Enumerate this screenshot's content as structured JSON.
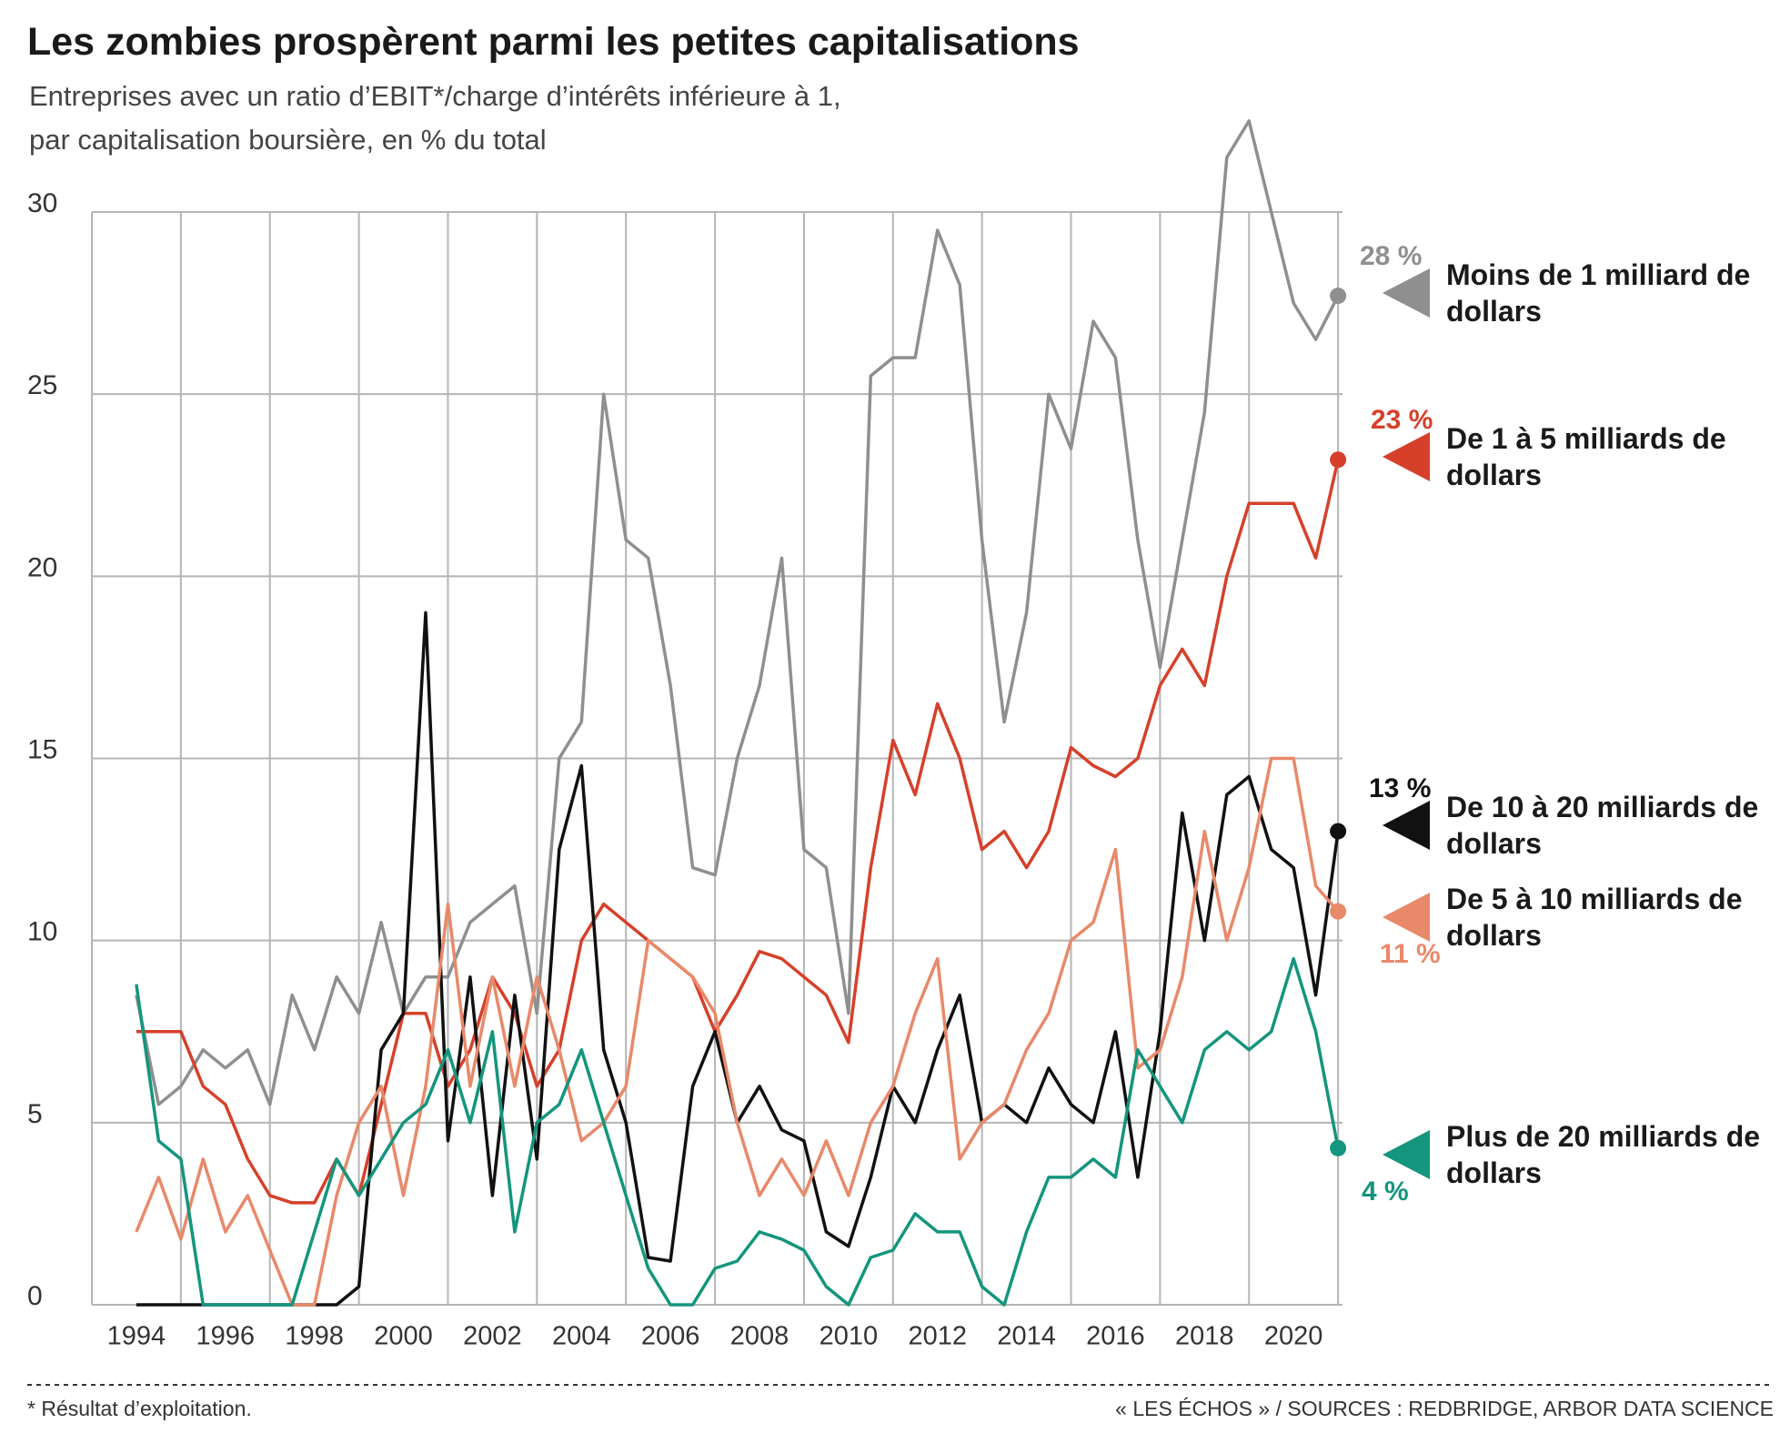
{
  "chart_data": {
    "type": "line",
    "title": "Les zombies prospèrent parmi les petites capitalisations",
    "subtitle": [
      "Entreprises avec un ratio d’EBIT*/charge d’intérêts inférieure à 1,",
      "par capitalisation boursière, en % du total"
    ],
    "footnote": "* Résultat d’exploitation.",
    "source": "« LES ÉCHOS » / SOURCES : REDBRIDGE, ARBOR DATA SCIENCE",
    "x": [
      1994,
      1994.5,
      1995,
      1995.5,
      1996,
      1996.5,
      1997,
      1997.5,
      1998,
      1998.5,
      1999,
      1999.5,
      2000,
      2000.5,
      2001,
      2001.5,
      2002,
      2002.5,
      2003,
      2003.5,
      2004,
      2004.5,
      2005,
      2005.5,
      2006,
      2006.5,
      2007,
      2007.5,
      2008,
      2008.5,
      2009,
      2009.5,
      2010,
      2010.5,
      2011,
      2011.5,
      2012,
      2012.5,
      2013,
      2013.5,
      2014,
      2014.5,
      2015,
      2015.5,
      2016,
      2016.5,
      2017,
      2017.5,
      2018,
      2018.5,
      2019,
      2019.5,
      2020,
      2020.5,
      2021
    ],
    "xlim": [
      1993,
      2021.1
    ],
    "xticks": [
      1994,
      1996,
      1998,
      2000,
      2002,
      2004,
      2006,
      2008,
      2010,
      2012,
      2014,
      2016,
      2018,
      2020
    ],
    "xgrid": [
      1993,
      1995,
      1997,
      1999,
      2001,
      2003,
      2005,
      2007,
      2009,
      2011,
      2013,
      2015,
      2017,
      2019,
      2021
    ],
    "ylim": [
      0,
      30
    ],
    "yticks": [
      0,
      5,
      10,
      15,
      20,
      25,
      30
    ],
    "grid": true,
    "series": [
      {
        "name": "Moins de 1 milliard de dollars",
        "color": "#8f8f8f",
        "end_label": "28 %",
        "values": [
          8.5,
          5.5,
          6,
          7,
          6.5,
          7,
          5.5,
          8.5,
          7,
          9,
          8,
          10.5,
          8,
          9,
          9,
          10.5,
          11,
          11.5,
          8,
          15,
          16,
          25,
          21,
          20.5,
          17,
          12,
          11.8,
          15,
          17,
          20.5,
          12.5,
          12,
          8,
          25.5,
          26,
          26,
          29.5,
          28,
          21,
          16,
          19,
          25,
          23.5,
          27,
          26,
          21,
          17.5,
          21,
          24.5,
          31.5,
          32.5,
          30,
          27.5,
          26.5,
          27.7
        ]
      },
      {
        "name": "De 1 à 5 milliards de dollars",
        "color": "#d6402a",
        "end_label": "23 %",
        "values": [
          7.5,
          7.5,
          7.5,
          6,
          5.5,
          4,
          3,
          2.8,
          2.8,
          4,
          3,
          5.5,
          8,
          8,
          6,
          7,
          9,
          8,
          6,
          7,
          10,
          11,
          10.5,
          10,
          9.5,
          9,
          7.5,
          8.5,
          9.7,
          9.5,
          9,
          8.5,
          7.2,
          12,
          15.5,
          14,
          16.5,
          15,
          12.5,
          13,
          12,
          13,
          15.3,
          14.8,
          14.5,
          15,
          17,
          18,
          17,
          20,
          22,
          22,
          22,
          20.5,
          23.2
        ]
      },
      {
        "name": "De 10 à 20 milliards de dollars",
        "color": "#111111",
        "end_label": "13 %",
        "values": [
          0,
          0,
          0,
          0,
          0,
          0,
          0,
          0,
          0,
          0,
          0.5,
          7,
          8,
          19,
          4.5,
          9,
          3,
          8.5,
          4,
          12.5,
          14.8,
          7,
          5,
          1.3,
          1.2,
          6,
          7.5,
          5,
          6,
          4.8,
          4.5,
          2,
          1.6,
          3.5,
          6,
          5,
          7,
          8.5,
          5,
          5.5,
          5,
          6.5,
          5.5,
          5,
          7.5,
          3.5,
          7.5,
          13.5,
          10,
          14,
          14.5,
          12.5,
          12,
          8.5,
          13
        ]
      },
      {
        "name": "De 5 à 10 milliards de dollars",
        "color": "#e8896a",
        "end_label": "11 %",
        "values": [
          2,
          3.5,
          1.8,
          4,
          2,
          3,
          1.5,
          0,
          0,
          3,
          5,
          6,
          3,
          6,
          11,
          6,
          9,
          6,
          9,
          7,
          4.5,
          5,
          6,
          10,
          9.5,
          9,
          8,
          5,
          3,
          4,
          3,
          4.5,
          3,
          5,
          6,
          8,
          9.5,
          4,
          5,
          5.5,
          7,
          8,
          10,
          10.5,
          12.5,
          6.5,
          7,
          9,
          13,
          10,
          12,
          15,
          15,
          11.5,
          10.8
        ]
      },
      {
        "name": "Plus de 20 milliards de dollars",
        "color": "#14957d",
        "end_label": "4 %",
        "values": [
          8.8,
          4.5,
          4,
          0,
          0,
          0,
          0,
          0,
          2,
          4,
          3,
          4,
          5,
          5.5,
          7,
          5,
          7.5,
          2,
          5,
          5.5,
          7,
          5,
          3,
          1,
          0,
          0,
          1,
          1.2,
          2,
          1.8,
          1.5,
          0.5,
          0,
          1.3,
          1.5,
          2.5,
          2,
          2,
          0.5,
          0,
          2,
          3.5,
          3.5,
          4,
          3.5,
          7,
          6,
          5,
          7,
          7.5,
          7,
          7.5,
          9.5,
          7.5,
          4.3
        ]
      }
    ]
  }
}
